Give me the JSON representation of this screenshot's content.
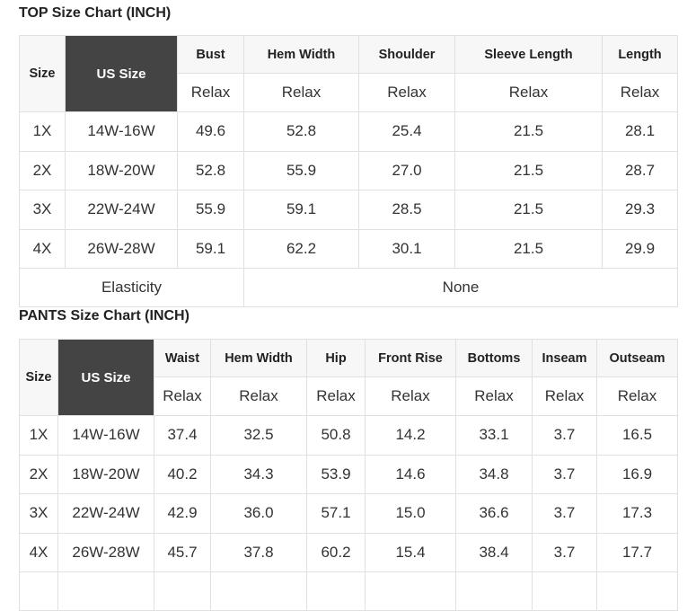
{
  "top": {
    "title": "TOP Size Chart (INCH)",
    "size_label": "Size",
    "us_label": "US Size",
    "columns": [
      "Bust",
      "Hem Width",
      "Shoulder",
      "Sleeve Length",
      "Length"
    ],
    "sub": "Relax",
    "rows": [
      [
        "1X",
        "14W-16W",
        "49.6",
        "52.8",
        "25.4",
        "21.5",
        "28.1"
      ],
      [
        "2X",
        "18W-20W",
        "52.8",
        "55.9",
        "27.0",
        "21.5",
        "28.7"
      ],
      [
        "3X",
        "22W-24W",
        "55.9",
        "59.1",
        "28.5",
        "21.5",
        "29.3"
      ],
      [
        "4X",
        "26W-28W",
        "59.1",
        "62.2",
        "30.1",
        "21.5",
        "29.9"
      ]
    ],
    "elasticity_label": "Elasticity",
    "elasticity_value": "None"
  },
  "pants": {
    "title": "PANTS Size Chart (INCH)",
    "size_label": "Size",
    "us_label": "US Size",
    "columns": [
      "Waist",
      "Hem Width",
      "Hip",
      "Front Rise",
      "Bottoms",
      "Inseam",
      "Outseam"
    ],
    "sub": "Relax",
    "rows": [
      [
        "1X",
        "14W-16W",
        "37.4",
        "32.5",
        "50.8",
        "14.2",
        "33.1",
        "3.7",
        "16.5"
      ],
      [
        "2X",
        "18W-20W",
        "40.2",
        "34.3",
        "53.9",
        "14.6",
        "34.8",
        "3.7",
        "16.9"
      ],
      [
        "3X",
        "22W-24W",
        "42.9",
        "36.0",
        "57.1",
        "15.0",
        "36.6",
        "3.7",
        "17.3"
      ],
      [
        "4X",
        "26W-28W",
        "45.7",
        "37.8",
        "60.2",
        "15.4",
        "38.4",
        "3.7",
        "17.7"
      ]
    ]
  }
}
